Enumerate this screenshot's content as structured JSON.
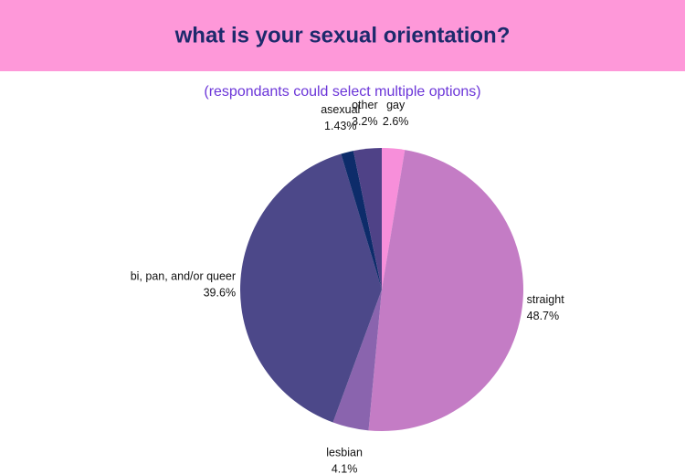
{
  "chart_data": {
    "type": "pie",
    "title": "what is your sexual orientation?",
    "subtitle": "(respondants could select multiple options)",
    "categories": [
      "gay",
      "straight",
      "lesbian",
      "bi, pan, and/or queer",
      "asexual",
      "other"
    ],
    "values": [
      2.6,
      48.7,
      4.1,
      39.6,
      1.43,
      3.2
    ],
    "value_labels": [
      "2.6%",
      "48.7%",
      "4.1%",
      "39.6%",
      "1.43%",
      "3.2%"
    ],
    "colors": [
      "#f78fda",
      "#c47cc5",
      "#8a64ae",
      "#4c4889",
      "#0d2c6a",
      "#4f4287"
    ]
  }
}
